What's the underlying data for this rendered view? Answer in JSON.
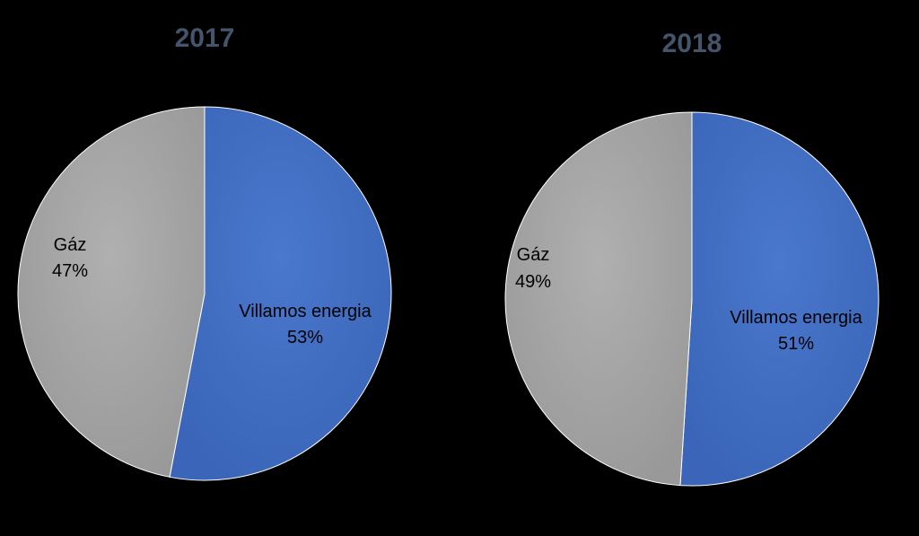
{
  "colors": {
    "background": "#000000",
    "title": "#44546A",
    "villamos": "#4472C4",
    "gaz": "#A5A5A5",
    "label": "#000000"
  },
  "chart_data": [
    {
      "type": "pie",
      "title": "2017",
      "slices": [
        {
          "label": "Villamos energia",
          "value": 53,
          "value_text": "53%"
        },
        {
          "label": "Gáz",
          "value": 47,
          "value_text": "47%"
        }
      ]
    },
    {
      "type": "pie",
      "title": "2018",
      "slices": [
        {
          "label": "Villamos energia",
          "value": 51,
          "value_text": "51%"
        },
        {
          "label": "Gáz",
          "value": 49,
          "value_text": "49%"
        }
      ]
    }
  ]
}
